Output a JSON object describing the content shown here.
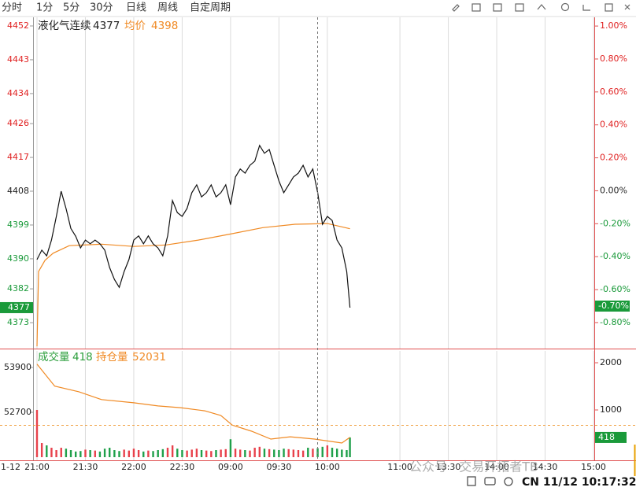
{
  "toolbar": {
    "tabs": [
      "分时",
      "1分",
      "5分",
      "30分",
      "日线",
      "周线",
      "自定周期"
    ]
  },
  "chart_data": [
    {
      "type": "line",
      "title": "液化气连续",
      "last": 4377,
      "avg_label": "均价",
      "avg": 4398,
      "last_change": {
        "value": -0.7,
        "label": "-0.70%"
      },
      "date_label": "1-12",
      "xlim": [
        0,
        345
      ],
      "xticks": [
        {
          "value": 0,
          "label": "21:00"
        },
        {
          "value": 30,
          "label": "21:30"
        },
        {
          "value": 60,
          "label": "22:00"
        },
        {
          "value": 90,
          "label": "22:30"
        },
        {
          "value": 120,
          "label": "09:00"
        },
        {
          "value": 150,
          "label": "09:30"
        },
        {
          "value": 180,
          "label": "10:00"
        },
        {
          "value": 225,
          "label": "11:00"
        },
        {
          "value": 255,
          "label": "13:30"
        },
        {
          "value": 285,
          "label": "14:00"
        },
        {
          "value": 315,
          "label": "14:30"
        },
        {
          "value": 345,
          "label": "15:00"
        }
      ],
      "ylim": [
        4366.1,
        4454.3
      ],
      "yticks": [
        4452,
        4443,
        4434,
        4426,
        4417,
        4408,
        4399,
        4390,
        4382,
        4373
      ],
      "y2lim": [
        -0.958,
        1.053
      ],
      "y2ticks": [
        {
          "value": 1,
          "label": "1.00%"
        },
        {
          "value": 0.8,
          "label": "0.80%"
        },
        {
          "value": 0.6,
          "label": "0.60%"
        },
        {
          "value": 0.4,
          "label": "0.40%"
        },
        {
          "value": 0.2,
          "label": "0.20%"
        },
        {
          "value": 0,
          "label": "0.00%"
        },
        {
          "value": -0.2,
          "label": "-0.20%"
        },
        {
          "value": -0.4,
          "label": "-0.40%"
        },
        {
          "value": -0.6,
          "label": "-0.60%"
        },
        {
          "value": -0.8,
          "label": "-0.80%"
        }
      ],
      "grid": true,
      "series": [
        {
          "color": "#111111",
          "x": [
            0,
            3,
            6,
            9,
            12,
            15,
            18,
            21,
            24,
            27,
            30,
            33,
            36,
            39,
            42,
            45,
            48,
            51,
            54,
            57,
            60,
            63,
            66,
            69,
            72,
            75,
            78,
            81,
            84,
            87,
            90,
            93,
            96,
            99,
            102,
            105,
            108,
            111,
            114,
            117,
            120,
            123,
            126,
            129,
            132,
            135,
            138,
            141,
            144,
            147,
            150,
            153,
            156,
            159,
            162,
            165,
            168,
            171,
            174,
            177,
            180,
            183,
            186,
            189,
            192,
            194
          ],
          "values": [
            4389.8,
            4392.3,
            4390.8,
            4395,
            4401.3,
            4408,
            4403.4,
            4398.1,
            4396,
            4392.9,
            4395,
            4394,
            4395,
            4394,
            4392.3,
            4387.7,
            4384.5,
            4382.4,
            4386.6,
            4389.8,
            4395,
            4396.1,
            4394,
            4396.1,
            4394,
            4392.9,
            4390.8,
            4396.1,
            4405.5,
            4402.3,
            4401.3,
            4403.4,
            4407.6,
            4409.7,
            4406.5,
            4407.6,
            4409.7,
            4406.5,
            4407.6,
            4409.7,
            4404.4,
            4411.8,
            4413.9,
            4412.8,
            4414.9,
            4416,
            4420.2,
            4418.1,
            4419.1,
            4414.9,
            4410.7,
            4407.6,
            4409.7,
            4411.8,
            4412.8,
            4414.9,
            4411.8,
            4413.9,
            4407.6,
            4399.2,
            4401.3,
            4400.2,
            4395,
            4392.9,
            4386.6,
            4377
          ]
        },
        {
          "color": "#f08a24",
          "x": [
            0,
            1,
            5,
            10,
            20,
            40,
            60,
            80,
            100,
            120,
            140,
            160,
            180,
            194
          ],
          "values": [
            4366.7,
            4386.6,
            4389.6,
            4391.5,
            4393.5,
            4393.9,
            4393.3,
            4393.7,
            4395,
            4396.6,
            4398.3,
            4399.2,
            4399.4,
            4398
          ]
        }
      ]
    },
    {
      "type": "volume",
      "volume_label": "成交量",
      "volume": 418,
      "oi_label": "持仓量",
      "oi": 52031,
      "ylim": [
        51458,
        54342
      ],
      "yticks": [
        53900,
        52700
      ],
      "y2lim": [
        -33,
        2250
      ],
      "y2ticks": [
        2000,
        1000
      ],
      "series": [
        {
          "color": "#f08a24",
          "x": [
            0,
            11,
            26,
            40,
            60,
            75,
            89,
            104,
            114,
            121,
            133,
            145,
            157,
            172,
            189,
            194
          ],
          "values": [
            53990,
            53400,
            53250,
            53040,
            52955,
            52870,
            52825,
            52740,
            52615,
            52360,
            52195,
            51985,
            52045,
            51985,
            51880,
            52031
          ]
        },
        {
          "axis": "y2",
          "colors": [
            "#e8414b",
            "#1fa04a"
          ],
          "x": [
            0,
            3,
            6,
            9,
            12,
            15,
            18,
            21,
            24,
            27,
            30,
            33,
            36,
            39,
            42,
            45,
            48,
            51,
            54,
            57,
            60,
            63,
            66,
            69,
            72,
            75,
            78,
            81,
            84,
            87,
            90,
            93,
            96,
            99,
            102,
            105,
            108,
            111,
            114,
            117,
            120,
            123,
            126,
            129,
            132,
            135,
            138,
            141,
            144,
            147,
            150,
            153,
            156,
            159,
            162,
            165,
            168,
            171,
            174,
            177,
            180,
            183,
            186,
            189,
            192,
            194
          ],
          "values": [
            1000,
            300,
            250,
            200,
            150,
            200,
            180,
            150,
            120,
            130,
            160,
            150,
            140,
            120,
            180,
            200,
            150,
            130,
            160,
            140,
            180,
            150,
            120,
            140,
            130,
            150,
            170,
            200,
            250,
            180,
            150,
            140,
            160,
            180,
            150,
            140,
            130,
            150,
            160,
            170,
            380,
            180,
            160,
            150,
            140,
            200,
            220,
            180,
            170,
            160,
            150,
            180,
            170,
            160,
            150,
            140,
            200,
            180,
            190,
            220,
            250,
            200,
            180,
            160,
            150,
            418
          ]
        }
      ]
    }
  ],
  "status": {
    "clock": "CN 11/12 10:17:32"
  },
  "watermark": "公众号 · 交易开拓者TB"
}
